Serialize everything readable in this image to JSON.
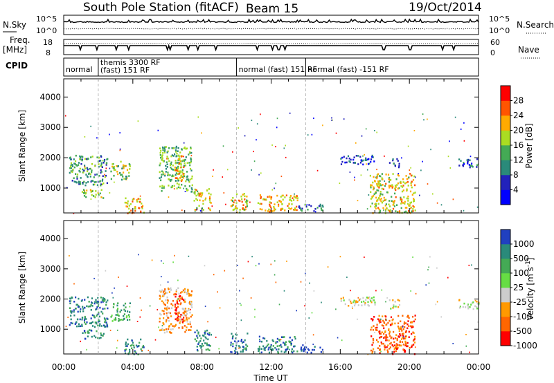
{
  "header": {
    "station": "South Pole Station (fitACF)",
    "beam": "Beam 15",
    "date": "19/Oct/2014"
  },
  "top_panels": {
    "nsky_label": "N.Sky",
    "nsky_ticks": [
      "10^5",
      "10^0"
    ],
    "nsearch_label": "N.Search",
    "nsearch_ticks": [
      "10^5",
      "10^0"
    ],
    "freq_label": "Freq.",
    "freq_unit": "[MHz]",
    "freq_ticks": [
      "18",
      "8"
    ],
    "nave_label": "Nave",
    "nave_ticks": [
      "60",
      "0"
    ],
    "cpid_label": "CPID"
  },
  "cpid_segments": [
    {
      "start_hr": 0.0,
      "end_hr": 2.0,
      "label": "normal"
    },
    {
      "start_hr": 2.0,
      "end_hr": 10.0,
      "label": "themis 3300 RF",
      "label2": "(fast) 151 RF"
    },
    {
      "start_hr": 10.0,
      "end_hr": 14.0,
      "label": "normal (fast)  151 RF"
    },
    {
      "start_hr": 14.0,
      "end_hr": 24.0,
      "label": "normal (fast) -151 RF"
    }
  ],
  "chart_data": [
    {
      "type": "heatmap",
      "name": "power",
      "ylabel": "Slant Range [km]",
      "xlabel": "Time UT",
      "xlim": [
        0,
        24
      ],
      "ylim": [
        180,
        4600
      ],
      "x_ticks": [
        "00:00",
        "04:00",
        "08:00",
        "12:00",
        "16:00",
        "20:00",
        "00:00"
      ],
      "y_ticks": [
        1000,
        2000,
        3000,
        4000
      ],
      "colorbar": {
        "label": "Power [dB]",
        "tick_labels": [
          "4",
          "8",
          "12",
          "16",
          "20",
          "24",
          "28"
        ],
        "range": [
          0,
          30
        ],
        "colors": [
          "#0000ff",
          "#2222bb",
          "#2a8a7a",
          "#44aa55",
          "#aadd22",
          "#ffaa00",
          "#ff5500",
          "#ff0000"
        ]
      },
      "regions": [
        {
          "t": [
            0.3,
            2.5
          ],
          "r": [
            1100,
            2100
          ],
          "v": 12
        },
        {
          "t": [
            1.0,
            2.3
          ],
          "r": [
            700,
            1000
          ],
          "v": 18
        },
        {
          "t": [
            2.7,
            3.8
          ],
          "r": [
            1300,
            1900
          ],
          "v": 16
        },
        {
          "t": [
            3.5,
            4.6
          ],
          "r": [
            180,
            700
          ],
          "v": 22
        },
        {
          "t": [
            5.5,
            7.4
          ],
          "r": [
            900,
            2400
          ],
          "v": 14
        },
        {
          "t": [
            6.4,
            6.9
          ],
          "r": [
            1200,
            2200
          ],
          "v": 22
        },
        {
          "t": [
            7.5,
            8.5
          ],
          "r": [
            300,
            1000
          ],
          "v": 20
        },
        {
          "t": [
            9.6,
            10.6
          ],
          "r": [
            200,
            900
          ],
          "v": 20
        },
        {
          "t": [
            11.2,
            13.5
          ],
          "r": [
            250,
            800
          ],
          "v": 22
        },
        {
          "t": [
            13.5,
            15.0
          ],
          "r": [
            250,
            500
          ],
          "v": 10
        },
        {
          "t": [
            15.9,
            18.0
          ],
          "r": [
            1800,
            2100
          ],
          "v": 6
        },
        {
          "t": [
            18.8,
            19.4
          ],
          "r": [
            1700,
            2000
          ],
          "v": 10
        },
        {
          "t": [
            17.7,
            20.3
          ],
          "r": [
            200,
            1500
          ],
          "v": 20
        },
        {
          "t": [
            22.8,
            24.0
          ],
          "r": [
            1700,
            2000
          ],
          "v": 8
        }
      ]
    },
    {
      "type": "heatmap",
      "name": "velocity",
      "ylabel": "Slant Range [km]",
      "xlabel": "Time UT",
      "xlim": [
        0,
        24
      ],
      "ylim": [
        180,
        4600
      ],
      "x_ticks": [
        "00:00",
        "04:00",
        "08:00",
        "12:00",
        "16:00",
        "20:00",
        "00:00"
      ],
      "y_ticks": [
        1000,
        2000,
        3000,
        4000
      ],
      "colorbar": {
        "label": "Velocity [m s^-1]",
        "tick_labels": [
          "1000",
          "500",
          "100",
          "25",
          "-25",
          "-100",
          "-500",
          "-1000"
        ],
        "colors": [
          "#2040c0",
          "#2a8a7a",
          "#44aa55",
          "#66dd44",
          "#cccccc",
          "#ff9900",
          "#ff6600",
          "#ff0000"
        ]
      },
      "regions": [
        {
          "t": [
            0.3,
            2.5
          ],
          "r": [
            1100,
            2100
          ],
          "v": 1
        },
        {
          "t": [
            1.0,
            2.3
          ],
          "r": [
            700,
            1000
          ],
          "v": 1
        },
        {
          "t": [
            2.7,
            3.8
          ],
          "r": [
            1300,
            1900
          ],
          "v": 2
        },
        {
          "t": [
            3.5,
            4.6
          ],
          "r": [
            180,
            700
          ],
          "v": 1
        },
        {
          "t": [
            5.5,
            7.4
          ],
          "r": [
            900,
            2400
          ],
          "v": 5
        },
        {
          "t": [
            6.4,
            6.9
          ],
          "r": [
            1200,
            2200
          ],
          "v": 7
        },
        {
          "t": [
            7.5,
            8.5
          ],
          "r": [
            300,
            1000
          ],
          "v": 1
        },
        {
          "t": [
            9.6,
            10.6
          ],
          "r": [
            200,
            900
          ],
          "v": 1
        },
        {
          "t": [
            11.2,
            13.5
          ],
          "r": [
            250,
            800
          ],
          "v": 1
        },
        {
          "t": [
            13.5,
            15.0
          ],
          "r": [
            250,
            500
          ],
          "v": 0
        },
        {
          "t": [
            15.9,
            18.0
          ],
          "r": [
            1800,
            2100
          ],
          "v": 4
        },
        {
          "t": [
            18.8,
            19.4
          ],
          "r": [
            1700,
            2000
          ],
          "v": 4
        },
        {
          "t": [
            17.7,
            20.3
          ],
          "r": [
            200,
            1500
          ],
          "v": 6
        },
        {
          "t": [
            22.8,
            24.0
          ],
          "r": [
            1700,
            2000
          ],
          "v": 4
        }
      ]
    }
  ]
}
